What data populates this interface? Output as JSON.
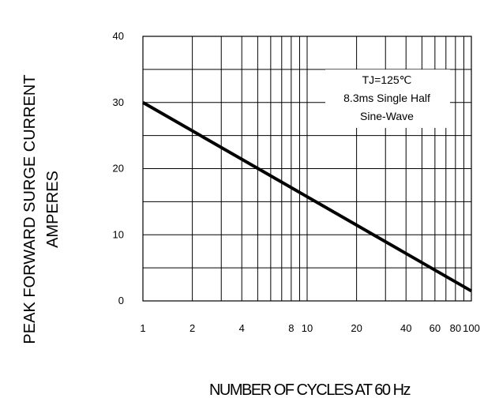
{
  "chart_data": {
    "type": "line",
    "title": "",
    "xlabel": "NUMBER OF CYCLES AT 60 Hz",
    "ylabel_lines": [
      "PEAK FORWARD SURGE CURRENT",
      "AMPERES"
    ],
    "x_scale": "log",
    "xlim": [
      1,
      100
    ],
    "ylim": [
      0,
      40
    ],
    "x_ticks": [
      1,
      2,
      4,
      8,
      10,
      20,
      40,
      60,
      80,
      100
    ],
    "x_tick_labels": [
      "1",
      "2",
      "4",
      "8",
      "10",
      "20",
      "40",
      "60",
      "80",
      "100"
    ],
    "y_ticks": [
      0,
      10,
      20,
      30,
      40
    ],
    "y_tick_labels": [
      "0",
      "10",
      "20",
      "30",
      "40"
    ],
    "grid": true,
    "legend": "none",
    "annotation_lines": [
      "TJ=125℃",
      "8.3ms Single Half",
      "Sine-Wave"
    ],
    "series": [
      {
        "x": [
          1,
          100
        ],
        "y": [
          30,
          1.5
        ],
        "color": "#000000"
      }
    ]
  }
}
